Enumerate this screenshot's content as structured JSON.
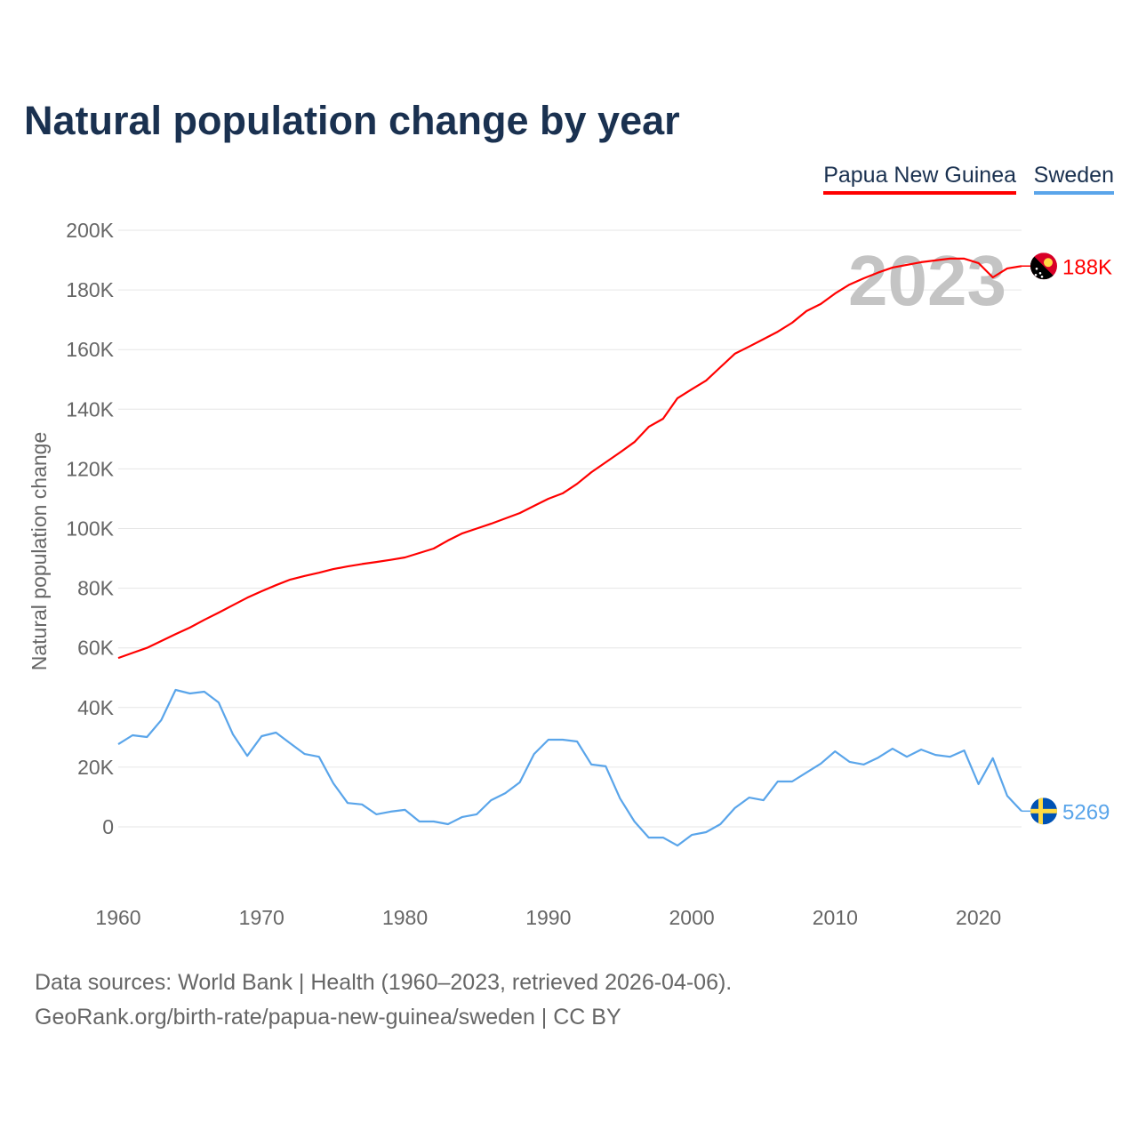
{
  "chart_data": {
    "type": "line",
    "title": "Natural population change by year",
    "xlabel": "",
    "ylabel": "Natural population change",
    "xlim": [
      1960,
      2023
    ],
    "ylim": [
      -20000,
      200000
    ],
    "yticks": [
      0,
      20000,
      40000,
      60000,
      80000,
      100000,
      120000,
      140000,
      160000,
      180000,
      200000
    ],
    "ytick_labels": [
      "0",
      "20K",
      "40K",
      "60K",
      "80K",
      "100K",
      "120K",
      "140K",
      "160K",
      "180K",
      "200K"
    ],
    "xticks": [
      1960,
      1970,
      1980,
      1990,
      2000,
      2010,
      2020
    ],
    "xtick_labels": [
      "1960",
      "1970",
      "1980",
      "1990",
      "2000",
      "2010",
      "2020"
    ],
    "grid": true,
    "legend_position": "top-right",
    "current_year_label": "2023",
    "x_start": 1960,
    "series": [
      {
        "name": "Papua New Guinea",
        "color": "#ff0000",
        "end_label": "188K",
        "values": [
          56600,
          58300,
          60000,
          62300,
          64600,
          66800,
          69400,
          71800,
          74300,
          76800,
          79000,
          81000,
          82900,
          84100,
          85200,
          86400,
          87300,
          88100,
          88800,
          89500,
          90300,
          91800,
          93300,
          96000,
          98400,
          100000,
          101600,
          103400,
          105200,
          107600,
          110000,
          111800,
          115000,
          118900,
          122200,
          125500,
          129000,
          134100,
          136800,
          143700,
          146700,
          149600,
          154100,
          158600,
          161000,
          163500,
          166000,
          169000,
          172900,
          175300,
          178800,
          181800,
          183900,
          185800,
          187500,
          188400,
          189300,
          189900,
          190500,
          190500,
          189000,
          184200,
          187200,
          188000
        ]
      },
      {
        "name": "Sweden",
        "color": "#5aa5ea",
        "end_label": "5269",
        "values": [
          27700,
          30700,
          30100,
          35800,
          45900,
          44700,
          45300,
          41700,
          31000,
          23800,
          30400,
          31600,
          28000,
          24400,
          23500,
          14600,
          8000,
          7500,
          4200,
          5100,
          5700,
          1800,
          1800,
          900,
          3300,
          4200,
          8900,
          11300,
          14900,
          24400,
          29200,
          29200,
          28600,
          20900,
          20300,
          9500,
          1800,
          -3600,
          -3600,
          -6300,
          -2700,
          -1800,
          900,
          6300,
          9800,
          8900,
          15200,
          15200,
          18200,
          21200,
          25300,
          21800,
          20900,
          23200,
          26200,
          23500,
          25900,
          24100,
          23500,
          25600,
          14300,
          23000,
          10400,
          5269
        ]
      }
    ]
  },
  "footer": {
    "line1": "Data sources: World Bank | Health (1960–2023, retrieved 2026-04-06).",
    "line2": "GeoRank.org/birth-rate/papua-new-guinea/sweden | CC BY"
  }
}
